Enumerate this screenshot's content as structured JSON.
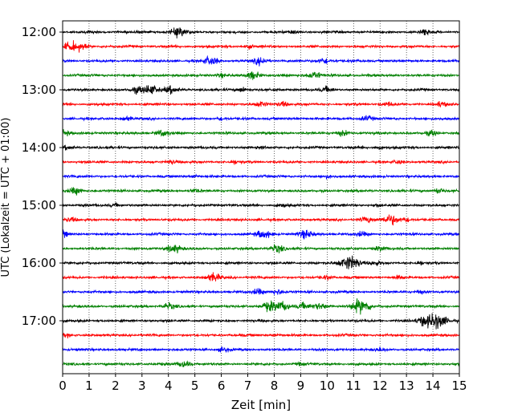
{
  "chart_data": {
    "type": "line",
    "title": "",
    "xlabel": "Zeit  [min]",
    "ylabel": "UTC (Lokalzeit = UTC + 01:00)",
    "xlim": [
      0,
      15
    ],
    "x_ticks": [
      0,
      1,
      2,
      3,
      4,
      5,
      6,
      7,
      8,
      9,
      10,
      11,
      12,
      13,
      14,
      15
    ],
    "y_tick_labels": [
      "12:00",
      "13:00",
      "14:00",
      "15:00",
      "16:00",
      "17:00"
    ],
    "grid": "vertical dotted",
    "trace_colors": [
      "#000000",
      "#ff0000",
      "#0000ff",
      "#008000"
    ],
    "series": [
      {
        "start": "12:00",
        "events": [
          [
            4.4,
            2.2
          ],
          [
            13.7,
            1.4
          ],
          [
            8.8,
            0.8
          ]
        ]
      },
      {
        "start": "12:15",
        "events": [
          [
            0.3,
            2.0
          ],
          [
            0.7,
            1.3
          ],
          [
            7.0,
            0.8
          ]
        ]
      },
      {
        "start": "12:30",
        "events": [
          [
            5.6,
            2.0
          ],
          [
            7.5,
            1.7
          ],
          [
            9.9,
            1.5
          ]
        ]
      },
      {
        "start": "12:45",
        "events": [
          [
            7.2,
            1.8
          ],
          [
            9.5,
            1.9
          ],
          [
            6.0,
            0.8
          ]
        ]
      },
      {
        "start": "13:00",
        "events": [
          [
            3.3,
            2.4
          ],
          [
            4.1,
            1.6
          ],
          [
            2.8,
            1.3
          ],
          [
            6.8,
            1.1
          ],
          [
            10.0,
            1.2
          ]
        ]
      },
      {
        "start": "13:15",
        "events": [
          [
            7.5,
            1.3
          ],
          [
            8.3,
            1.2
          ],
          [
            12.3,
            1.0
          ],
          [
            14.3,
            1.2
          ]
        ]
      },
      {
        "start": "13:30",
        "events": [
          [
            2.4,
            1.0
          ],
          [
            11.5,
            1.2
          ],
          [
            6.0,
            0.8
          ]
        ]
      },
      {
        "start": "13:45",
        "events": [
          [
            0.0,
            1.4
          ],
          [
            3.8,
            1.5
          ],
          [
            10.6,
            1.3
          ],
          [
            14.0,
            1.3
          ]
        ]
      },
      {
        "start": "14:00",
        "events": [
          [
            0.2,
            0.9
          ],
          [
            7.5,
            0.8
          ],
          [
            12.0,
            0.6
          ]
        ]
      },
      {
        "start": "14:15",
        "events": [
          [
            4.1,
            1.0
          ],
          [
            6.5,
            0.8
          ],
          [
            12.7,
            0.8
          ]
        ]
      },
      {
        "start": "14:30",
        "events": [
          [
            5.0,
            0.6
          ],
          [
            10.0,
            0.5
          ]
        ]
      },
      {
        "start": "14:45",
        "events": [
          [
            0.5,
            1.6
          ],
          [
            5.0,
            0.9
          ],
          [
            14.2,
            1.2
          ]
        ]
      },
      {
        "start": "15:00",
        "events": [
          [
            2.0,
            0.7
          ],
          [
            8.3,
            0.7
          ],
          [
            12.0,
            0.6
          ]
        ]
      },
      {
        "start": "15:15",
        "events": [
          [
            0.3,
            1.0
          ],
          [
            11.5,
            1.3
          ],
          [
            12.4,
            2.4
          ],
          [
            13.0,
            1.0
          ]
        ]
      },
      {
        "start": "15:30",
        "events": [
          [
            0.0,
            1.3
          ],
          [
            7.6,
            1.9
          ],
          [
            9.2,
            1.9
          ],
          [
            11.3,
            1.0
          ]
        ]
      },
      {
        "start": "15:45",
        "events": [
          [
            4.2,
            2.0
          ],
          [
            8.1,
            1.8
          ],
          [
            12.0,
            1.0
          ]
        ]
      },
      {
        "start": "16:00",
        "events": [
          [
            10.85,
            3.5
          ],
          [
            11.8,
            1.0
          ],
          [
            13.5,
            0.7
          ]
        ]
      },
      {
        "start": "16:15",
        "events": [
          [
            5.7,
            1.9
          ],
          [
            10.0,
            0.9
          ],
          [
            12.7,
            0.8
          ]
        ]
      },
      {
        "start": "16:30",
        "events": [
          [
            7.4,
            1.3
          ],
          [
            8.1,
            1.3
          ],
          [
            13.5,
            0.8
          ]
        ]
      },
      {
        "start": "16:45",
        "events": [
          [
            4.0,
            1.4
          ],
          [
            7.8,
            2.2
          ],
          [
            8.3,
            2.0
          ],
          [
            9.1,
            1.6
          ],
          [
            9.7,
            1.5
          ],
          [
            11.1,
            2.0
          ],
          [
            11.4,
            2.3
          ]
        ]
      },
      {
        "start": "17:00",
        "events": [
          [
            13.6,
            1.4
          ],
          [
            14.1,
            3.8
          ]
        ]
      },
      {
        "start": "17:15",
        "events": [
          [
            0.2,
            0.6
          ],
          [
            8.0,
            0.6
          ]
        ]
      },
      {
        "start": "17:30",
        "events": [
          [
            6.1,
            1.0
          ],
          [
            12.0,
            0.7
          ]
        ]
      },
      {
        "start": "17:45",
        "events": [
          [
            4.6,
            1.5
          ],
          [
            9.0,
            0.6
          ]
        ]
      }
    ]
  }
}
